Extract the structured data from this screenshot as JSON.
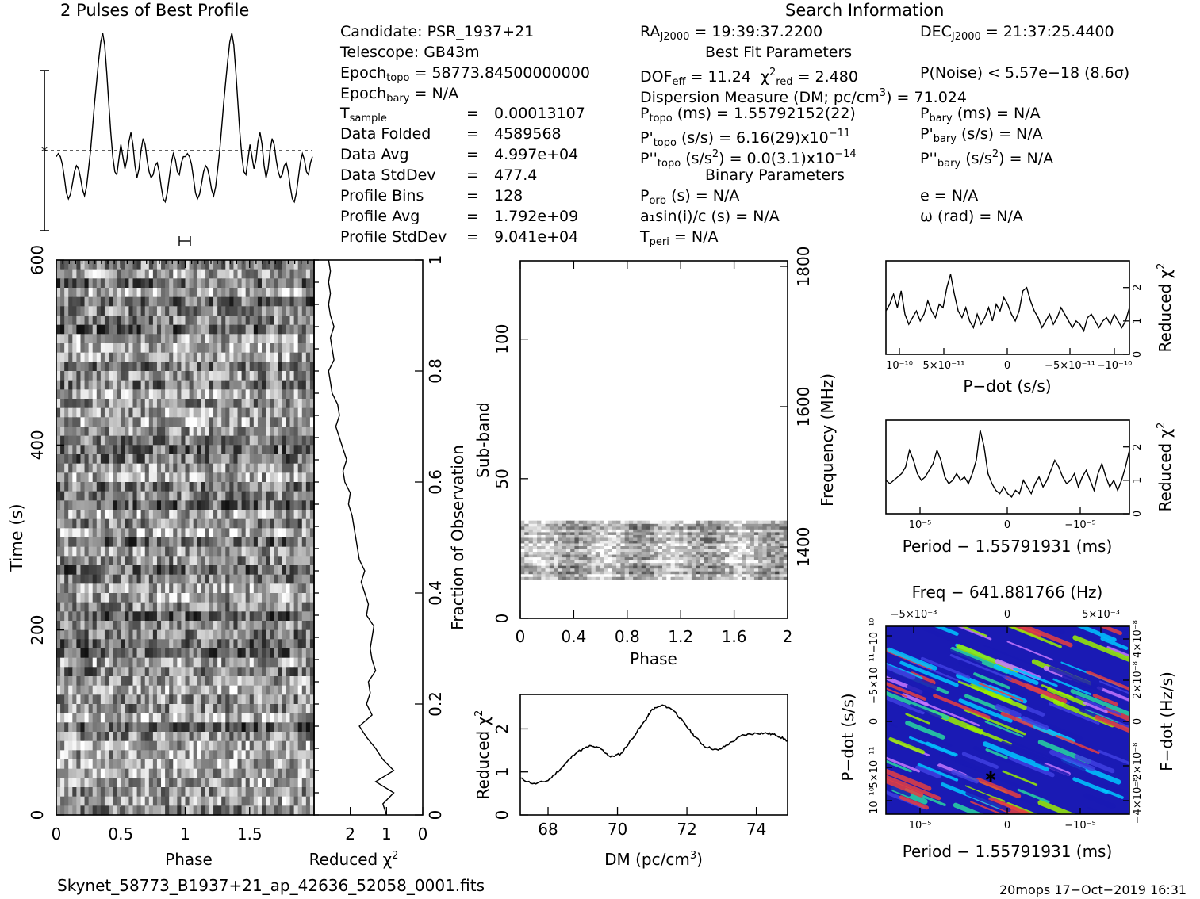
{
  "header": {
    "profile_title": "2 Pulses of Best Profile",
    "search_title": "Search Information",
    "best_fit_title": "Best Fit Parameters",
    "binary_title": "Binary Parameters",
    "candidate": "Candidate:  PSR_1937+21",
    "telescope": "Telescope:  GB43m",
    "epoch_topo_value": "= 58773.84500000000",
    "epoch_bary_value": "= N/A",
    "tsample_value": "0.00013107",
    "data_folded_label": "Data Folded",
    "data_folded_value": "4589568",
    "data_avg_label": "Data Avg",
    "data_avg_value": "4.997e+04",
    "data_std_label": "Data StdDev",
    "data_std_value": "477.4",
    "profile_bins_label": "Profile Bins",
    "profile_bins_value": "128",
    "profile_avg_label": "Profile Avg",
    "profile_avg_value": "1.792e+09",
    "profile_std_label": "Profile StdDev",
    "profile_std_value": "9.041e+04",
    "eq": "=",
    "ra_value": "= 19:39:37.2200",
    "dec_value": "= 21:37:25.4400",
    "dof_value": "= 11.24",
    "chi2_value": "= 2.480",
    "pnoise": "P(Noise) < 5.57e−18  (8.6σ)",
    "dm_line_a": "Dispersion Measure (DM; pc/cm",
    "dm_line_b": ") = 71.024",
    "ptopo_value": "(ms) =  1.55792152(22)",
    "pdot_topo_value": "(s/s) =  6.16(29)x10",
    "pdot_topo_exp": "−11",
    "pddot_topo_value": "(s/s",
    "pddot_topo_b": ") = 0.0(3.1)x10",
    "pddot_topo_exp": "−14",
    "pbary_value": "(ms) = N/A",
    "pdot_bary_value": "(s/s) = N/A",
    "pddot_bary_value": "(s/s",
    "pddot_bary_b": ") = N/A",
    "porb": "(s) = N/A",
    "a1sini": "a₁sin(i)/c (s) = N/A",
    "tperi": "= N/A",
    "ecc": "e = N/A",
    "omega": "ω (rad) = N/A"
  },
  "footer": {
    "filename": "Skynet_58773_B1937+21_ap_42636_52058_0001.fits",
    "stamp": "20mops 17−Oct−2019 16:31"
  },
  "colors": {
    "ink": "#000000",
    "colormap": [
      "#1a1ab4",
      "#3f3fe0",
      "#00c8ff",
      "#28d7a0",
      "#9bf000",
      "#e64040",
      "#c878ff"
    ]
  },
  "chart_data": [
    {
      "id": "profile",
      "type": "line",
      "title": "2 Pulses of Best Profile",
      "x": "phase 0-2 (2 pulses)",
      "series": [
        {
          "values": [
            -0.2,
            -0.1,
            -0.2,
            -0.45,
            -0.9,
            -1.4,
            -1.6,
            -1.45,
            -1.1,
            -0.7,
            -0.5,
            -0.6,
            -0.9,
            -1.3,
            -1.5,
            -1.2,
            -0.6,
            0.0,
            0.8,
            1.6,
            2.3,
            3.0,
            3.6,
            3.9,
            3.5,
            2.6,
            1.6,
            0.6,
            -0.2,
            -0.7,
            -0.8,
            -0.3,
            0.2,
            -0.2,
            -0.6,
            -0.3,
            0.3,
            0.6,
            0.2,
            -0.5,
            -0.9,
            -0.6,
            0.0,
            0.4,
            0.2,
            -0.3,
            -0.7,
            -0.9,
            -0.8,
            -0.5,
            -0.4,
            -0.7,
            -1.2,
            -1.6,
            -1.7,
            -1.4,
            -0.9,
            -0.4,
            -0.1,
            -0.3,
            -0.7,
            -0.8,
            -0.4,
            -0.2,
            -0.2,
            -0.1,
            -0.2,
            -0.45,
            -0.9,
            -1.4,
            -1.6,
            -1.45,
            -1.1,
            -0.7,
            -0.5,
            -0.6,
            -0.9,
            -1.3,
            -1.5,
            -1.2,
            -0.6,
            0.0,
            0.8,
            1.6,
            2.3,
            3.0,
            3.6,
            3.9,
            3.5,
            2.6,
            1.6,
            0.6,
            -0.2,
            -0.7,
            -0.8,
            -0.3,
            0.2,
            -0.2,
            -0.6,
            -0.3,
            0.3,
            0.6,
            0.2,
            -0.5,
            -0.9,
            -0.6,
            0.0,
            0.4,
            0.2,
            -0.3,
            -0.7,
            -0.9,
            -0.8,
            -0.5,
            -0.4,
            -0.7,
            -1.2,
            -1.6,
            -1.7,
            -1.4,
            -0.9,
            -0.4,
            -0.1,
            -0.3,
            -0.7,
            -0.8,
            -0.4,
            -0.2
          ]
        }
      ]
    },
    {
      "id": "time-phase",
      "type": "heatmap",
      "xlabel": "Phase",
      "ylabel": "Time (s)",
      "x_ticks": [
        "0",
        "0.5",
        "1",
        "1.5"
      ],
      "y_ticks": [
        "0",
        "200",
        "400",
        "600"
      ],
      "xlim": [
        0,
        2
      ],
      "ylim": [
        0,
        600
      ]
    },
    {
      "id": "time-chi2",
      "type": "line",
      "xlabel": "Reduced χ",
      "ylabel": "Fraction of Observation",
      "x_ticks": [
        "2",
        "1",
        "0"
      ],
      "y_ticks": [
        "0",
        "0.2",
        "0.4",
        "0.6",
        "0.8",
        "1"
      ],
      "xlim": [
        3,
        0
      ],
      "ylim": [
        0,
        1
      ],
      "fraction": [
        0,
        0.02,
        0.04,
        0.06,
        0.08,
        0.1,
        0.12,
        0.14,
        0.16,
        0.18,
        0.2,
        0.22,
        0.24,
        0.26,
        0.28,
        0.3,
        0.32,
        0.34,
        0.36,
        0.38,
        0.4,
        0.42,
        0.44,
        0.46,
        0.48,
        0.5,
        0.52,
        0.54,
        0.56,
        0.58,
        0.6,
        0.62,
        0.64,
        0.66,
        0.68,
        0.7,
        0.72,
        0.74,
        0.76,
        0.78,
        0.8,
        0.82,
        0.84,
        0.86,
        0.88,
        0.9,
        0.92,
        0.94,
        0.96,
        0.98,
        1.0
      ],
      "values": [
        1.0,
        1.1,
        0.8,
        1.3,
        0.8,
        1.1,
        1.3,
        1.55,
        1.75,
        1.4,
        1.55,
        1.45,
        1.5,
        1.3,
        1.4,
        1.45,
        1.4,
        1.35,
        1.55,
        1.5,
        1.6,
        1.7,
        1.6,
        1.75,
        1.8,
        1.85,
        1.9,
        1.95,
        2.05,
        2.0,
        2.15,
        2.2,
        2.1,
        2.2,
        2.3,
        2.4,
        2.3,
        2.35,
        2.5,
        2.55,
        2.6,
        2.45,
        2.5,
        2.55,
        2.45,
        2.55,
        2.6,
        2.55,
        2.6,
        2.55,
        2.6
      ]
    },
    {
      "id": "subband-phase",
      "type": "heatmap",
      "xlabel": "Phase",
      "ylabel": "Sub-band",
      "y2label": "Frequency (MHz)",
      "x_ticks": [
        "0",
        "0.4",
        "0.8",
        "1.2",
        "1.6",
        "2"
      ],
      "y_ticks": [
        "0",
        "50",
        "100"
      ],
      "y2_ticks": [
        "1400",
        "1600",
        "1800"
      ],
      "xlim": [
        0,
        2
      ],
      "ylim": [
        0,
        128
      ],
      "filled_subbands": [
        14,
        35
      ]
    },
    {
      "id": "dm-chi2",
      "type": "line",
      "xlabel": "DM (pc/cm",
      "ylabel": "Reduced χ",
      "x_ticks": [
        "68",
        "70",
        "72",
        "74"
      ],
      "y_ticks": [
        "0",
        "1",
        "2"
      ],
      "xlim": [
        67.2,
        74.9
      ],
      "ylim": [
        0,
        2.8
      ],
      "x": [
        67.2,
        67.6,
        68.0,
        68.4,
        68.8,
        69.2,
        69.5,
        69.8,
        70.1,
        70.4,
        70.8,
        71.0,
        71.3,
        71.6,
        71.9,
        72.2,
        72.5,
        72.9,
        73.2,
        73.6,
        74.0,
        74.3,
        74.6,
        74.9
      ],
      "values": [
        0.85,
        0.72,
        0.8,
        1.1,
        1.45,
        1.6,
        1.55,
        1.35,
        1.42,
        1.75,
        2.2,
        2.45,
        2.55,
        2.45,
        2.15,
        1.85,
        1.6,
        1.5,
        1.65,
        1.85,
        1.9,
        1.9,
        1.85,
        1.72
      ]
    },
    {
      "id": "pdot-chi2",
      "type": "line",
      "xlabel": "P−dot (s/s)",
      "ylabel": "Reduced χ",
      "x_ticks": [
        "10⁻¹⁰",
        "5×10⁻¹¹",
        "0",
        "−5×10⁻¹¹",
        "−10⁻¹⁰"
      ],
      "y_ticks": [
        "0",
        "1",
        "2"
      ],
      "ylim": [
        0,
        2.8
      ],
      "values": [
        1.3,
        1.5,
        1.8,
        1.4,
        1.9,
        1.2,
        0.9,
        1.1,
        1.3,
        1.0,
        1.2,
        1.6,
        1.3,
        1.1,
        1.5,
        1.4,
        2.0,
        2.4,
        1.8,
        1.3,
        1.1,
        1.4,
        1.0,
        0.8,
        1.2,
        0.9,
        1.1,
        1.4,
        1.0,
        1.5,
        1.3,
        1.7,
        1.5,
        1.2,
        1.0,
        1.3,
        1.9,
        2.0,
        1.6,
        1.3,
        1.1,
        0.8,
        1.0,
        1.2,
        0.9,
        1.1,
        1.4,
        1.2,
        1.0,
        0.8,
        1.0,
        0.9,
        0.7,
        1.1,
        1.2,
        1.0,
        0.8,
        1.0,
        1.1,
        0.9,
        1.2,
        1.0,
        0.8,
        1.0,
        1.4
      ]
    },
    {
      "id": "period-chi2",
      "type": "line",
      "xlabel": "Period − 1.55791931 (ms)",
      "ylabel": "Reduced χ",
      "x_ticks": [
        "10⁻⁵",
        "0",
        "−10⁻⁵"
      ],
      "y_ticks": [
        "0",
        "1",
        "2"
      ],
      "ylim": [
        0,
        2.8
      ],
      "values": [
        1.0,
        0.9,
        1.0,
        1.1,
        1.2,
        1.4,
        1.9,
        1.6,
        1.2,
        1.0,
        1.1,
        1.3,
        1.5,
        1.9,
        1.6,
        1.1,
        0.9,
        1.0,
        1.2,
        1.0,
        1.1,
        0.9,
        1.2,
        1.6,
        2.5,
        2.0,
        1.2,
        0.9,
        0.7,
        0.6,
        0.8,
        0.6,
        0.5,
        0.7,
        0.6,
        1.0,
        0.8,
        0.6,
        0.9,
        1.1,
        0.8,
        1.0,
        1.3,
        1.6,
        1.4,
        1.1,
        0.9,
        1.0,
        1.2,
        0.8,
        1.1,
        1.3,
        1.0,
        0.7,
        1.2,
        1.5,
        1.1,
        0.8,
        1.0,
        0.7,
        1.0,
        1.4,
        1.9
      ]
    },
    {
      "id": "p-pdot",
      "type": "heatmap",
      "title": "Freq − 641.881766 (Hz)",
      "xlabel": "Period − 1.55791931 (ms)",
      "ylabel": "P−dot (s/s)",
      "y2label": "F−dot (Hz/s)",
      "x_ticks": [
        "10⁻⁵",
        "0",
        "−10⁻⁵"
      ],
      "x2_ticks": [
        "−5×10⁻³",
        "0",
        "5×10⁻³"
      ],
      "y_ticks": [
        "10⁻¹⁰",
        "5×10⁻¹¹",
        "0",
        "−5×10⁻¹¹",
        "−10⁻¹⁰"
      ],
      "y2_ticks": [
        "−4×10⁻⁸",
        "−2×10⁻⁸",
        "0",
        "2×10⁻⁸",
        "4×10⁻⁸"
      ]
    }
  ]
}
